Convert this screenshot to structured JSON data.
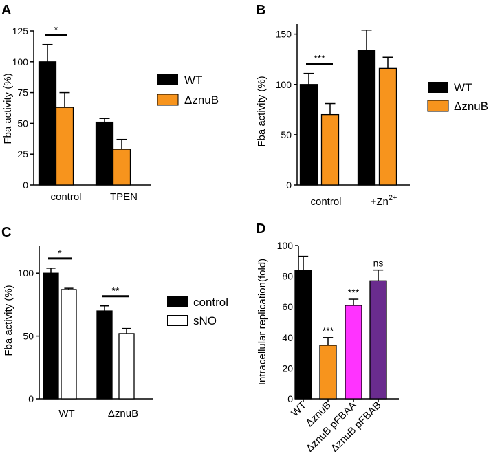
{
  "chart_data": [
    {
      "panel": "A",
      "type": "bar",
      "ylabel": "Fba activity (%)",
      "yticks": [
        0,
        25,
        50,
        75,
        100,
        125
      ],
      "ylim": [
        0,
        125
      ],
      "categories": [
        "control",
        "TPEN"
      ],
      "series": [
        {
          "name": "WT",
          "color": "#000000",
          "values": [
            100,
            51
          ],
          "errors": [
            14,
            3
          ]
        },
        {
          "name": "ΔznuB",
          "color": "#f7941d",
          "values": [
            63,
            29
          ],
          "errors": [
            12,
            8
          ]
        }
      ],
      "legend_position": "right",
      "annotations": [
        {
          "text": "*",
          "category": "control",
          "pair": [
            "WT",
            "ΔznuB"
          ]
        }
      ]
    },
    {
      "panel": "B",
      "type": "bar",
      "ylabel": "Fba activity (%)",
      "yticks": [
        0,
        50,
        100,
        150
      ],
      "ylim": [
        0,
        160
      ],
      "categories": [
        "control",
        "+Zn2+"
      ],
      "category_display": [
        {
          "base": "control",
          "sup": ""
        },
        {
          "base": "+Zn",
          "sup": "2+"
        }
      ],
      "series": [
        {
          "name": "WT",
          "color": "#000000",
          "values": [
            100,
            134
          ],
          "errors": [
            11,
            20
          ]
        },
        {
          "name": "ΔznuB",
          "color": "#f7941d",
          "values": [
            70,
            116
          ],
          "errors": [
            11,
            11
          ]
        }
      ],
      "legend_position": "right",
      "annotations": [
        {
          "text": "***",
          "category": "control",
          "pair": [
            "WT",
            "ΔznuB"
          ]
        }
      ]
    },
    {
      "panel": "C",
      "type": "bar",
      "ylabel": "Fba activity (%)",
      "yticks": [
        0,
        50,
        100
      ],
      "ylim": [
        0,
        122
      ],
      "categories": [
        "WT",
        "ΔznuB"
      ],
      "series": [
        {
          "name": "control",
          "color": "#000000",
          "values": [
            100,
            70
          ],
          "errors": [
            4,
            4
          ]
        },
        {
          "name": "sNO",
          "color": "#ffffff",
          "values": [
            87,
            52
          ],
          "errors": [
            1,
            4
          ]
        }
      ],
      "legend_position": "right",
      "annotations": [
        {
          "text": "*",
          "category": "WT",
          "pair": [
            "control",
            "sNO"
          ]
        },
        {
          "text": "**",
          "category": "ΔznuB",
          "pair": [
            "control",
            "sNO"
          ]
        }
      ]
    },
    {
      "panel": "D",
      "type": "bar",
      "ylabel": "Intracellular replication(fold)",
      "yticks": [
        0,
        20,
        40,
        60,
        80,
        100
      ],
      "ylim": [
        0,
        100
      ],
      "categories": [
        "WT",
        "ΔznuB",
        "ΔznuB pFBAA",
        "ΔznuB pFBAB"
      ],
      "values": [
        84,
        35,
        61,
        77
      ],
      "errors": [
        9,
        5,
        4,
        7
      ],
      "colors": [
        "#000000",
        "#f7941d",
        "#ff33ff",
        "#6a2c8e"
      ],
      "annotations": [
        "",
        "***",
        "***",
        "ns"
      ]
    }
  ]
}
